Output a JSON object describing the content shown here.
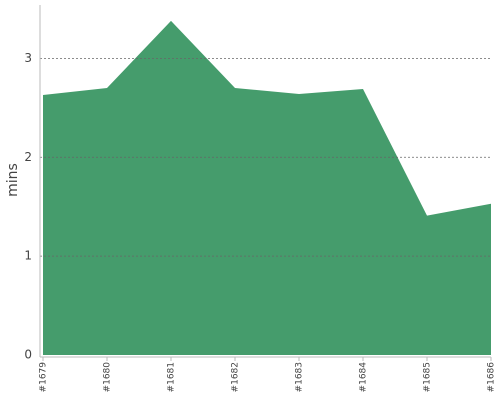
{
  "chart_data": {
    "type": "area",
    "y_label": "mins",
    "categories": [
      "#1679",
      "#1680",
      "#1681",
      "#1682",
      "#1683",
      "#1684",
      "#1685",
      "#1686"
    ],
    "values": [
      2.63,
      2.7,
      3.38,
      2.7,
      2.64,
      2.69,
      1.41,
      1.53
    ],
    "color": "#459c6c",
    "ylim": [
      0,
      3.54
    ],
    "yticks": [
      0,
      1,
      2,
      3
    ],
    "grid": true
  }
}
